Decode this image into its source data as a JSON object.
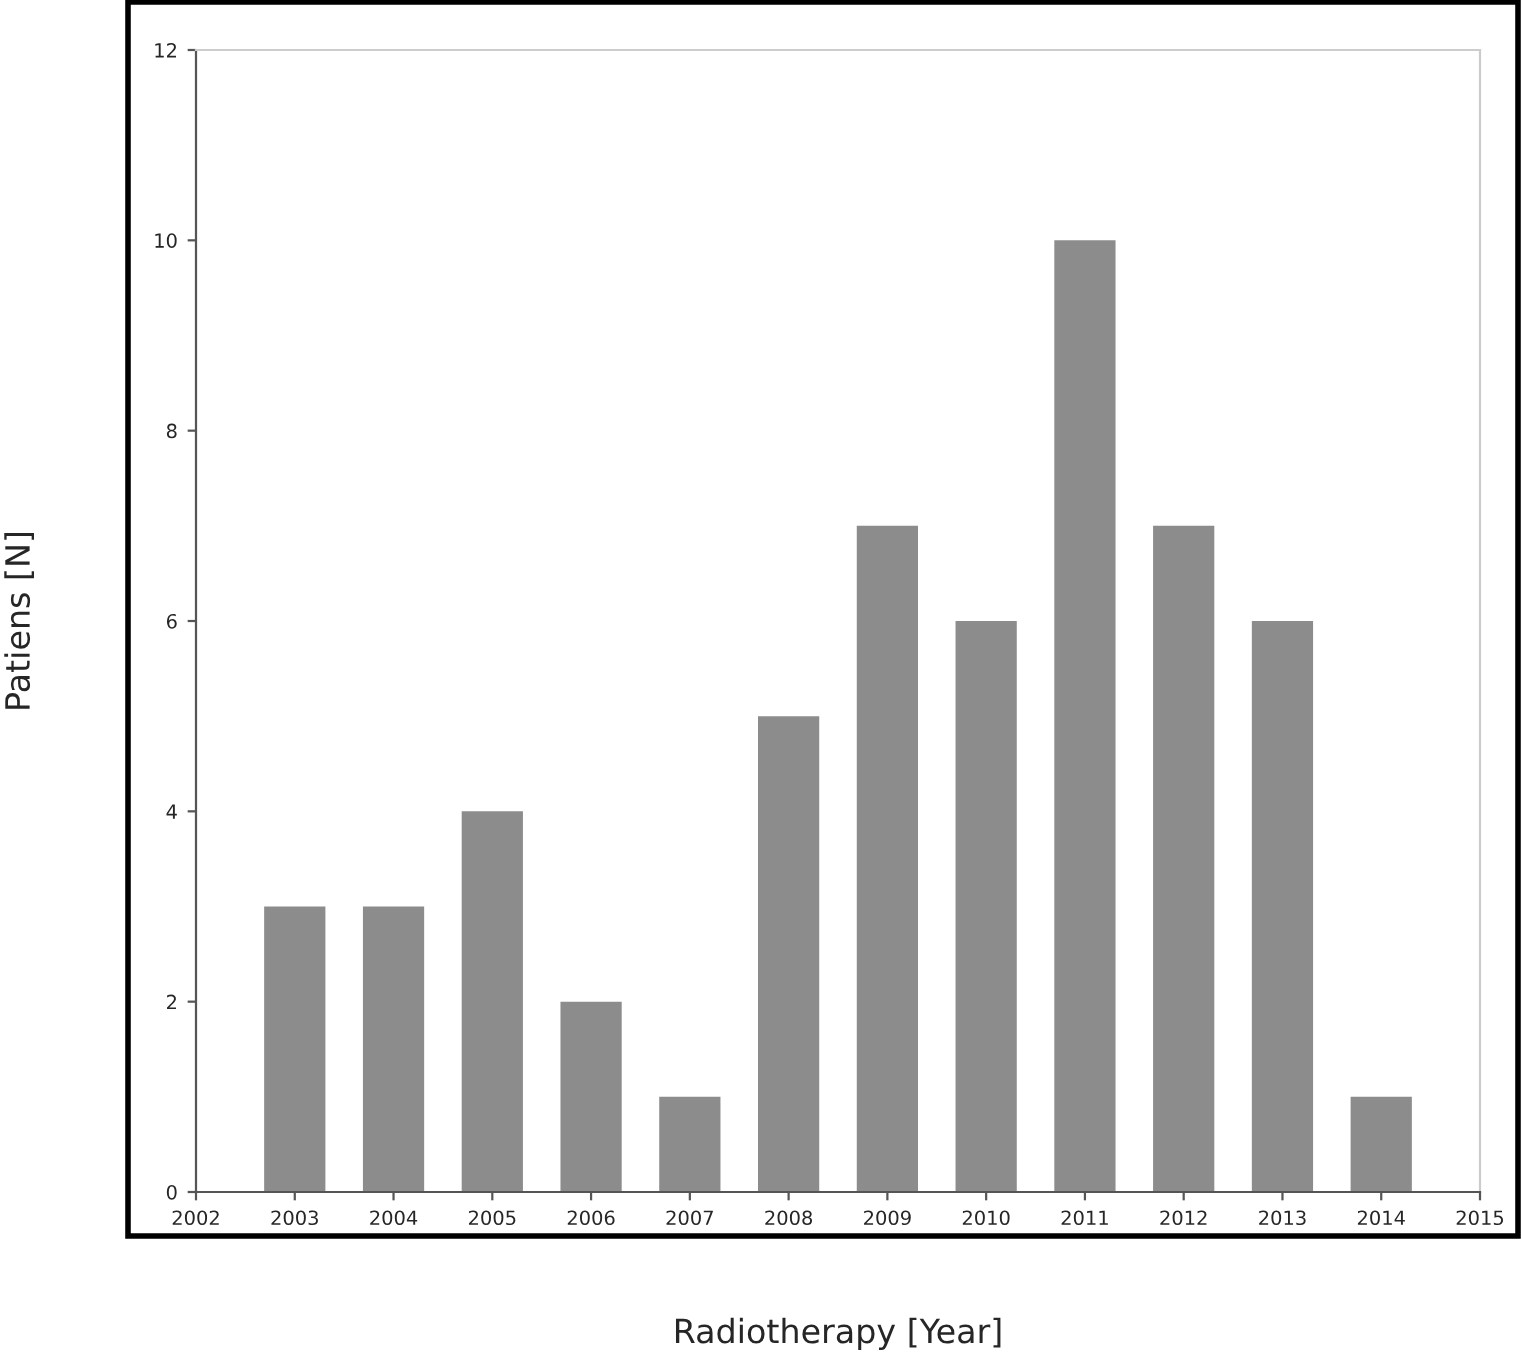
{
  "chart_data": {
    "type": "bar",
    "xlabel": "Radiotherapy [Year]",
    "ylabel": "Patiens [N]",
    "x": [
      2003,
      2004,
      2005,
      2006,
      2007,
      2008,
      2009,
      2010,
      2011,
      2012,
      2013,
      2014
    ],
    "values": [
      3,
      3,
      4,
      2,
      1,
      5,
      7,
      6,
      10,
      7,
      6,
      1
    ],
    "color": "#8c8c8c",
    "xlim": [
      2002,
      2015
    ],
    "xticks": [
      2002,
      2003,
      2004,
      2005,
      2006,
      2007,
      2008,
      2009,
      2010,
      2011,
      2012,
      2013,
      2014,
      2015
    ],
    "ylim": [
      0,
      12
    ],
    "yticks": [
      0,
      2,
      4,
      6,
      8,
      10,
      12
    ],
    "grid": false,
    "legend": false
  }
}
